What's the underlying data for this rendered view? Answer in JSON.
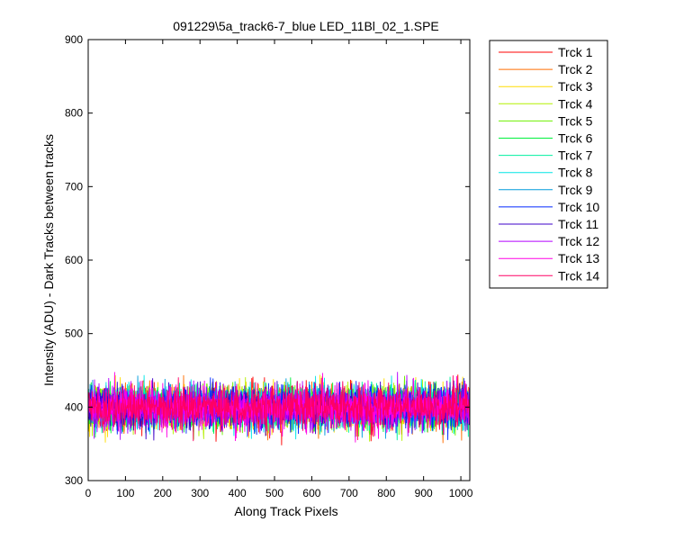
{
  "chart_data": {
    "type": "line",
    "title": "091229\\5a_track6-7_blue LED_11Bl_02_1.SPE",
    "xlabel": "Along Track Pixels",
    "ylabel": "Intensity (ADU) - Dark Tracks between tracks",
    "xlim": [
      0,
      1024
    ],
    "ylim": [
      300,
      900
    ],
    "xticks": [
      0,
      100,
      200,
      300,
      400,
      500,
      600,
      700,
      800,
      900,
      1000
    ],
    "yticks": [
      300,
      400,
      500,
      600,
      700,
      800,
      900
    ],
    "x_start": 1,
    "x_end": 1024,
    "baseline": 400,
    "noise_sd": 14,
    "grid": false,
    "legend_position": "outside-right",
    "series": [
      {
        "name": "Trck 1",
        "color": "#ff0000"
      },
      {
        "name": "Trck 2",
        "color": "#ff6e00"
      },
      {
        "name": "Trck 3",
        "color": "#ffdc00"
      },
      {
        "name": "Trck 4",
        "color": "#b4f000"
      },
      {
        "name": "Trck 5",
        "color": "#6ef000"
      },
      {
        "name": "Trck 6",
        "color": "#00f03c"
      },
      {
        "name": "Trck 7",
        "color": "#00f0a0"
      },
      {
        "name": "Trck 8",
        "color": "#00e6e6"
      },
      {
        "name": "Trck 9",
        "color": "#009bdc"
      },
      {
        "name": "Trck 10",
        "color": "#0028ff"
      },
      {
        "name": "Trck 11",
        "color": "#3c00c8"
      },
      {
        "name": "Trck 12",
        "color": "#b400ff"
      },
      {
        "name": "Trck 13",
        "color": "#ff00e6"
      },
      {
        "name": "Trck 14",
        "color": "#ff0064"
      }
    ]
  }
}
